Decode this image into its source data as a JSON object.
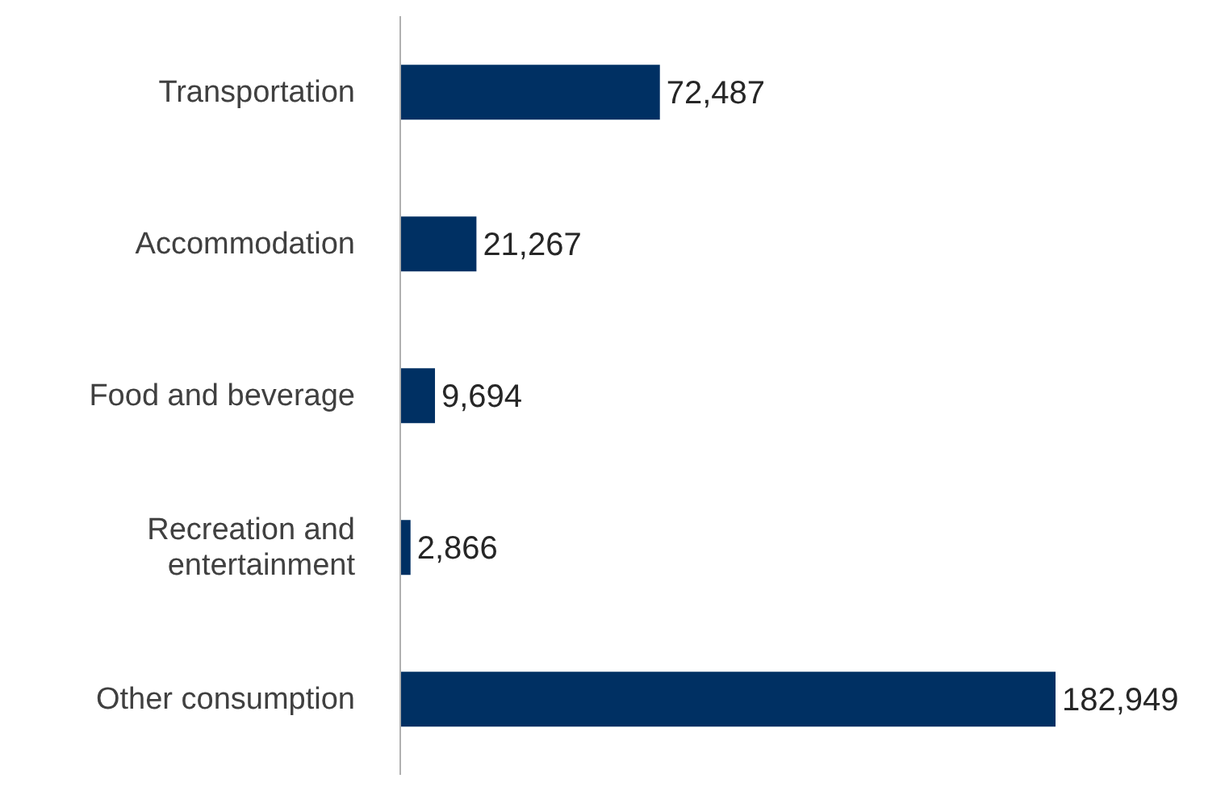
{
  "chart_data": {
    "type": "bar",
    "orientation": "horizontal",
    "categories": [
      "Transportation",
      "Accommodation",
      "Food and beverage",
      "Recreation and entertainment",
      "Other consumption"
    ],
    "values": [
      72487,
      21267,
      9694,
      2866,
      182949
    ],
    "color": "#003063",
    "value_labels": [
      "72,487",
      "21,267",
      "9,694",
      "2,866",
      "182,949"
    ]
  }
}
